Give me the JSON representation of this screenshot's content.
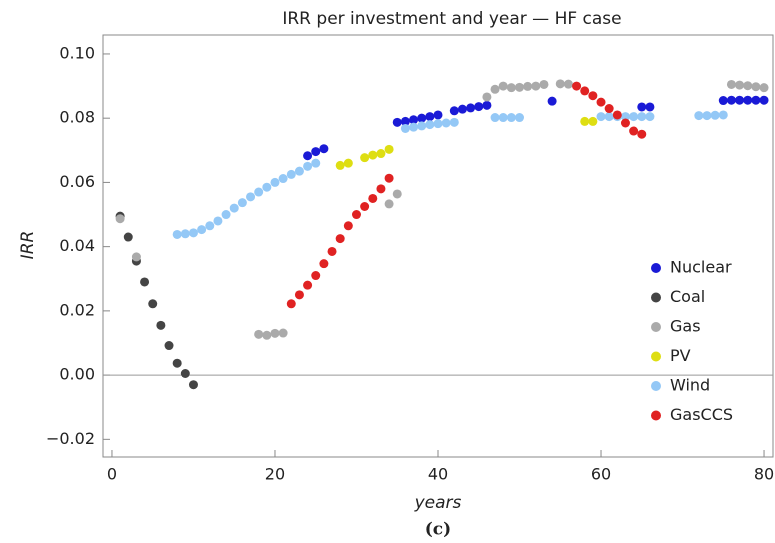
{
  "chart_data": {
    "type": "scatter",
    "title": "IRR per investment and year — HF case",
    "x_label": "years",
    "y_label": "IRR",
    "caption": "(c)",
    "xlim": [
      -1.1,
      81.1
    ],
    "ylim": [
      -0.0255,
      0.1059
    ],
    "xticks": [
      0,
      20,
      40,
      60,
      80
    ],
    "yticks": [
      {
        "value": -0.02,
        "label": "−0.02"
      },
      {
        "value": 0,
        "label": "0.00"
      },
      {
        "value": 0.02,
        "label": "0.02"
      },
      {
        "value": 0.04,
        "label": "0.04"
      },
      {
        "value": 0.06,
        "label": "0.06"
      },
      {
        "value": 0.08,
        "label": "0.08"
      },
      {
        "value": 0.1,
        "label": "0.10"
      }
    ],
    "legend": "right",
    "series": [
      {
        "name": "Nuclear",
        "color": "#1a1ad6",
        "x": [
          24,
          25,
          26,
          35,
          36,
          37,
          38,
          39,
          40,
          42,
          43,
          44,
          45,
          46,
          54,
          65,
          66,
          75,
          76,
          77,
          78,
          79,
          80
        ],
        "values": [
          0.0683,
          0.0696,
          0.0705,
          0.0787,
          0.079,
          0.0795,
          0.08,
          0.0805,
          0.081,
          0.0823,
          0.0828,
          0.0832,
          0.0836,
          0.084,
          0.0853,
          0.0835,
          0.0835,
          0.0855,
          0.0856,
          0.0856,
          0.0856,
          0.0856,
          0.0856
        ]
      },
      {
        "name": "Coal",
        "color": "#444444",
        "x": [
          1,
          2,
          3,
          4,
          5,
          6,
          7,
          8,
          9,
          10
        ],
        "values": [
          0.0495,
          0.043,
          0.0355,
          0.029,
          0.0222,
          0.0155,
          0.0092,
          0.0037,
          0.0005,
          -0.003
        ]
      },
      {
        "name": "Gas",
        "color": "#aaaaaa",
        "x": [
          1,
          3,
          18,
          19,
          20,
          21,
          34,
          35,
          46,
          47,
          48,
          49,
          50,
          51,
          52,
          53,
          55,
          56,
          76,
          77,
          78,
          79,
          80
        ],
        "values": [
          0.0487,
          0.0368,
          0.0127,
          0.0124,
          0.013,
          0.0131,
          0.0533,
          0.0564,
          0.0866,
          0.089,
          0.09,
          0.0895,
          0.0896,
          0.0899,
          0.09,
          0.0905,
          0.0907,
          0.0906,
          0.0905,
          0.0903,
          0.0901,
          0.0898,
          0.0895
        ]
      },
      {
        "name": "PV",
        "color": "#dede12",
        "x": [
          28,
          29,
          31,
          32,
          33,
          34,
          58,
          59
        ],
        "values": [
          0.0653,
          0.066,
          0.0677,
          0.0685,
          0.069,
          0.0703,
          0.079,
          0.079
        ]
      },
      {
        "name": "Wind",
        "color": "#94c8f6",
        "x": [
          8,
          9,
          10,
          11,
          12,
          13,
          14,
          15,
          16,
          17,
          18,
          19,
          20,
          21,
          22,
          23,
          24,
          25,
          36,
          37,
          38,
          39,
          40,
          41,
          42,
          47,
          48,
          49,
          50,
          60,
          61,
          62,
          63,
          64,
          65,
          66,
          72,
          73,
          74,
          75
        ],
        "values": [
          0.0438,
          0.044,
          0.0443,
          0.0453,
          0.0465,
          0.048,
          0.05,
          0.052,
          0.0537,
          0.0555,
          0.057,
          0.0585,
          0.06,
          0.0612,
          0.0625,
          0.0635,
          0.065,
          0.066,
          0.0768,
          0.0772,
          0.0776,
          0.078,
          0.0783,
          0.0785,
          0.0787,
          0.0802,
          0.0802,
          0.0802,
          0.0802,
          0.0805,
          0.0805,
          0.0805,
          0.0805,
          0.0805,
          0.0805,
          0.0805,
          0.0808,
          0.0808,
          0.0809,
          0.081
        ]
      },
      {
        "name": "GasCCS",
        "color": "#e02222",
        "x": [
          22,
          23,
          24,
          25,
          26,
          27,
          28,
          29,
          30,
          31,
          32,
          33,
          34,
          57,
          58,
          59,
          60,
          61,
          62,
          63,
          64,
          65
        ],
        "values": [
          0.0222,
          0.025,
          0.028,
          0.031,
          0.0347,
          0.0385,
          0.0425,
          0.0465,
          0.05,
          0.0525,
          0.055,
          0.058,
          0.0613,
          0.09,
          0.0885,
          0.087,
          0.085,
          0.083,
          0.081,
          0.0785,
          0.076,
          0.075
        ]
      }
    ]
  }
}
